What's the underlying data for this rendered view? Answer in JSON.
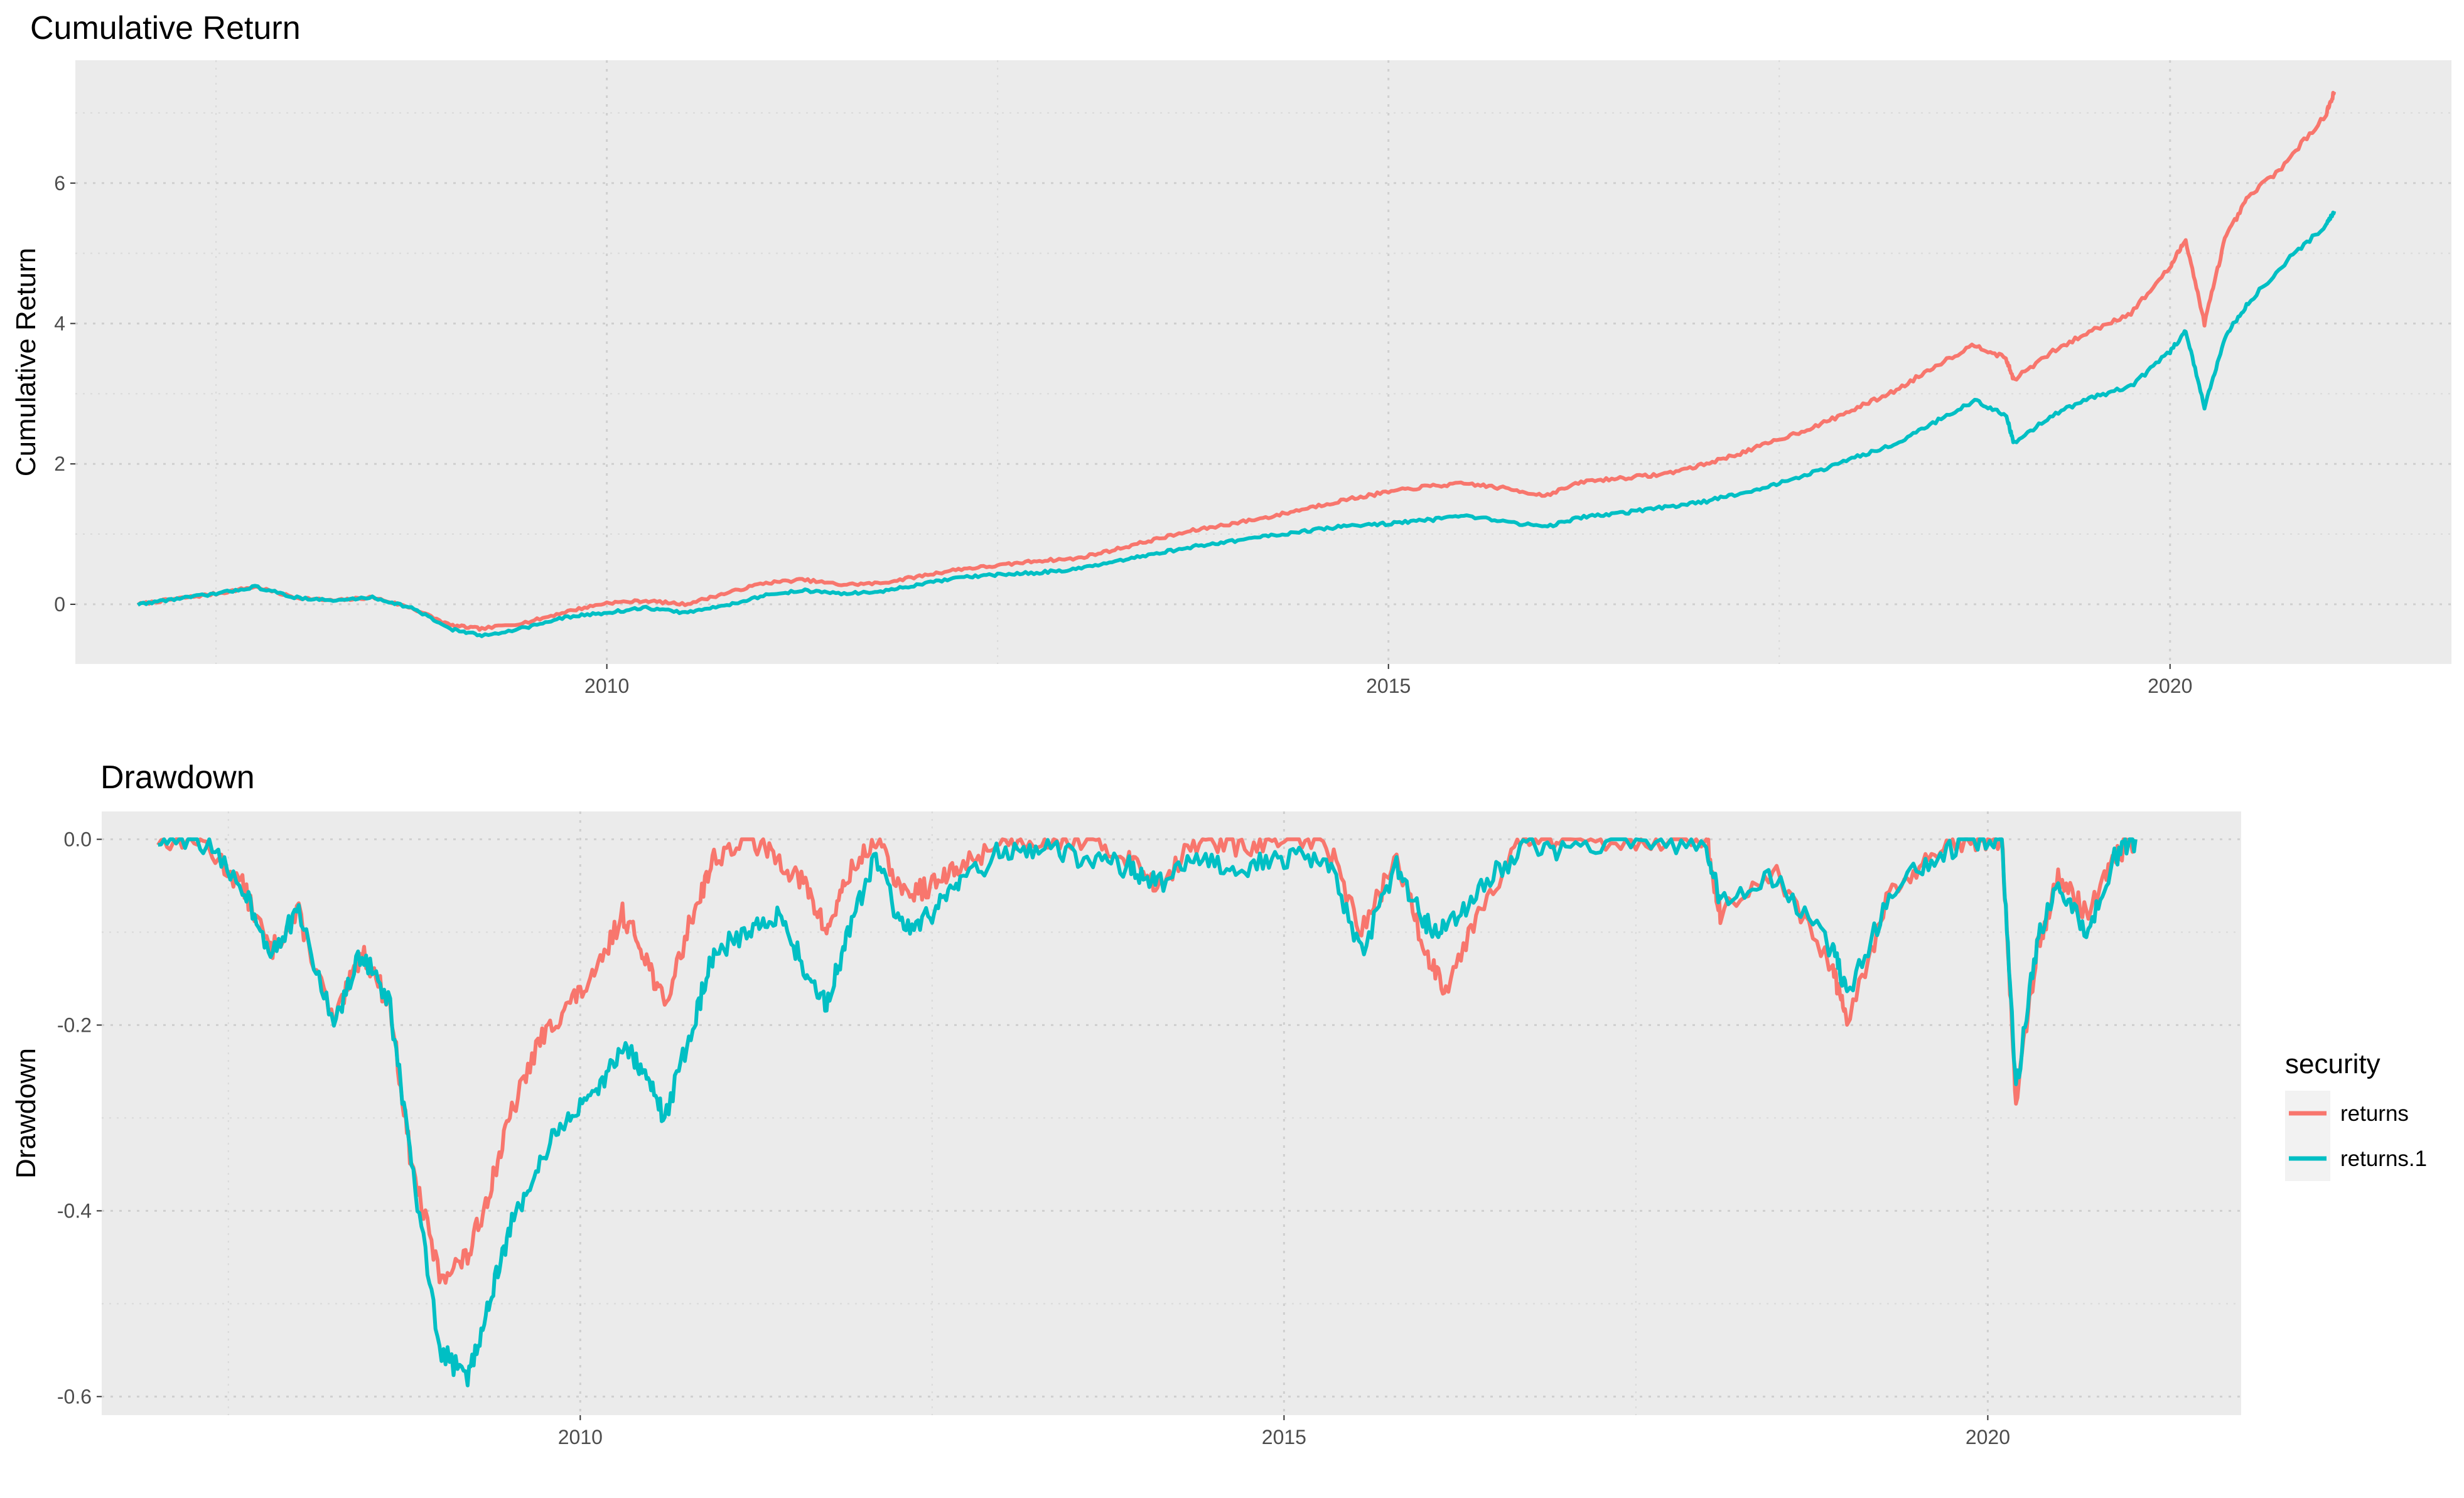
{
  "chart_data": [
    {
      "type": "line",
      "title": "Cumulative Return",
      "xlabel": "",
      "ylabel": "Cumulative Return",
      "x_ticks": [
        "2010",
        "2015",
        "2020"
      ],
      "y_ticks": [
        "0",
        "2",
        "4",
        "6"
      ],
      "xlim": [
        2006.6,
        2021.8
      ],
      "ylim": [
        -0.85,
        7.75
      ],
      "grid": true,
      "series": [
        {
          "name": "returns",
          "color": "#F8766D",
          "x": [
            2007.0,
            2007.25,
            2007.5,
            2007.75,
            2008.0,
            2008.25,
            2008.5,
            2008.75,
            2009.0,
            2009.2,
            2009.5,
            2009.75,
            2010.0,
            2010.25,
            2010.5,
            2010.75,
            2011.0,
            2011.25,
            2011.5,
            2011.75,
            2012.0,
            2012.25,
            2012.5,
            2012.75,
            2013.0,
            2013.25,
            2013.5,
            2013.75,
            2014.0,
            2014.25,
            2014.5,
            2014.75,
            2015.0,
            2015.25,
            2015.5,
            2015.75,
            2016.0,
            2016.25,
            2016.5,
            2016.75,
            2017.0,
            2017.25,
            2017.5,
            2017.75,
            2018.0,
            2018.25,
            2018.5,
            2018.75,
            2018.95,
            2019.0,
            2019.25,
            2019.5,
            2019.75,
            2020.0,
            2020.1,
            2020.22,
            2020.35,
            2020.5,
            2020.75,
            2021.0,
            2021.05
          ],
          "y": [
            0.0,
            0.08,
            0.15,
            0.25,
            0.1,
            0.05,
            0.1,
            -0.05,
            -0.3,
            -0.35,
            -0.25,
            -0.1,
            0.02,
            0.05,
            0.0,
            0.15,
            0.3,
            0.35,
            0.28,
            0.3,
            0.4,
            0.5,
            0.55,
            0.62,
            0.65,
            0.78,
            0.92,
            1.05,
            1.15,
            1.25,
            1.38,
            1.5,
            1.6,
            1.68,
            1.72,
            1.65,
            1.55,
            1.75,
            1.8,
            1.85,
            1.98,
            2.15,
            2.35,
            2.55,
            2.8,
            3.05,
            3.4,
            3.7,
            3.5,
            3.2,
            3.6,
            3.9,
            4.15,
            4.8,
            5.2,
            4.0,
            5.2,
            5.8,
            6.3,
            7.0,
            7.3
          ]
        },
        {
          "name": "returns.1",
          "color": "#00BFC4",
          "x": [
            2007.0,
            2007.25,
            2007.5,
            2007.75,
            2008.0,
            2008.25,
            2008.5,
            2008.75,
            2009.0,
            2009.2,
            2009.5,
            2009.75,
            2010.0,
            2010.25,
            2010.5,
            2010.75,
            2011.0,
            2011.25,
            2011.5,
            2011.75,
            2012.0,
            2012.25,
            2012.5,
            2012.75,
            2013.0,
            2013.25,
            2013.5,
            2013.75,
            2014.0,
            2014.25,
            2014.5,
            2014.75,
            2015.0,
            2015.25,
            2015.5,
            2015.75,
            2016.0,
            2016.25,
            2016.5,
            2016.75,
            2017.0,
            2017.25,
            2017.5,
            2017.75,
            2018.0,
            2018.25,
            2018.5,
            2018.75,
            2018.95,
            2019.0,
            2019.25,
            2019.5,
            2019.75,
            2020.0,
            2020.1,
            2020.22,
            2020.35,
            2020.5,
            2020.75,
            2021.0,
            2021.05
          ],
          "y": [
            0.0,
            0.08,
            0.15,
            0.25,
            0.1,
            0.05,
            0.1,
            -0.05,
            -0.35,
            -0.45,
            -0.32,
            -0.18,
            -0.12,
            -0.05,
            -0.12,
            -0.02,
            0.12,
            0.2,
            0.15,
            0.18,
            0.28,
            0.38,
            0.42,
            0.45,
            0.5,
            0.6,
            0.72,
            0.82,
            0.9,
            0.98,
            1.05,
            1.12,
            1.15,
            1.2,
            1.25,
            1.18,
            1.1,
            1.25,
            1.3,
            1.38,
            1.45,
            1.58,
            1.72,
            1.9,
            2.1,
            2.3,
            2.6,
            2.9,
            2.7,
            2.3,
            2.7,
            2.95,
            3.1,
            3.6,
            3.9,
            2.8,
            3.8,
            4.3,
            4.9,
            5.4,
            5.6
          ]
        }
      ]
    },
    {
      "type": "line",
      "title": "Drawdown",
      "xlabel": "",
      "ylabel": "Drawdown",
      "x_ticks": [
        "2010",
        "2015",
        "2020"
      ],
      "y_ticks": [
        "-0.6",
        "-0.4",
        "-0.2",
        "0.0"
      ],
      "xlim": [
        2006.6,
        2021.8
      ],
      "ylim": [
        -0.62,
        0.03
      ],
      "grid": true,
      "legend": {
        "title": "security",
        "position": "right",
        "entries": [
          "returns",
          "returns.1"
        ]
      },
      "series": [
        {
          "name": "returns",
          "color": "#F8766D",
          "x": [
            2007.0,
            2007.3,
            2007.6,
            2007.8,
            2008.0,
            2008.25,
            2008.45,
            2008.65,
            2008.8,
            2009.0,
            2009.2,
            2009.35,
            2009.5,
            2009.7,
            2009.9,
            2010.1,
            2010.3,
            2010.45,
            2010.6,
            2010.8,
            2010.95,
            2011.2,
            2011.4,
            2011.6,
            2011.75,
            2011.9,
            2012.1,
            2012.3,
            2012.5,
            2012.7,
            2013.0,
            2013.3,
            2013.6,
            2013.9,
            2014.1,
            2014.4,
            2014.7,
            2015.0,
            2015.3,
            2015.55,
            2015.8,
            2016.0,
            2016.15,
            2016.4,
            2016.7,
            2017.0,
            2017.5,
            2018.0,
            2018.1,
            2018.5,
            2018.9,
            2019.0,
            2019.3,
            2019.6,
            2019.9,
            2020.1,
            2020.2,
            2020.35,
            2020.5,
            2020.7,
            2020.9,
            2021.05
          ],
          "y": [
            0.0,
            0.0,
            -0.05,
            -0.12,
            -0.08,
            -0.2,
            -0.12,
            -0.18,
            -0.35,
            -0.47,
            -0.45,
            -0.38,
            -0.3,
            -0.22,
            -0.18,
            -0.15,
            -0.08,
            -0.12,
            -0.18,
            -0.08,
            -0.02,
            0.0,
            -0.02,
            -0.05,
            -0.1,
            -0.04,
            0.0,
            -0.06,
            -0.05,
            -0.03,
            0.0,
            0.0,
            0.0,
            -0.02,
            -0.05,
            0.0,
            -0.01,
            0.0,
            0.0,
            -0.1,
            -0.02,
            -0.12,
            -0.16,
            -0.07,
            0.0,
            0.0,
            0.0,
            0.0,
            -0.08,
            -0.04,
            -0.14,
            -0.2,
            -0.06,
            -0.02,
            0.0,
            0.0,
            -0.28,
            -0.12,
            -0.04,
            -0.08,
            -0.02,
            0.0
          ]
        },
        {
          "name": "returns.1",
          "color": "#00BFC4",
          "x": [
            2007.0,
            2007.3,
            2007.6,
            2007.8,
            2008.0,
            2008.25,
            2008.45,
            2008.65,
            2008.8,
            2009.0,
            2009.2,
            2009.35,
            2009.5,
            2009.7,
            2009.9,
            2010.1,
            2010.3,
            2010.45,
            2010.6,
            2010.8,
            2010.95,
            2011.2,
            2011.4,
            2011.6,
            2011.75,
            2011.9,
            2012.1,
            2012.3,
            2012.5,
            2012.7,
            2013.0,
            2013.3,
            2013.6,
            2013.9,
            2014.1,
            2014.4,
            2014.7,
            2015.0,
            2015.3,
            2015.55,
            2015.8,
            2016.0,
            2016.15,
            2016.4,
            2016.7,
            2017.0,
            2017.5,
            2018.0,
            2018.1,
            2018.5,
            2018.9,
            2019.0,
            2019.3,
            2019.6,
            2019.9,
            2020.1,
            2020.2,
            2020.35,
            2020.5,
            2020.7,
            2020.9,
            2021.05
          ],
          "y": [
            0.0,
            0.0,
            -0.05,
            -0.12,
            -0.08,
            -0.2,
            -0.12,
            -0.18,
            -0.35,
            -0.55,
            -0.58,
            -0.5,
            -0.42,
            -0.35,
            -0.3,
            -0.28,
            -0.22,
            -0.25,
            -0.3,
            -0.2,
            -0.12,
            -0.1,
            -0.08,
            -0.14,
            -0.18,
            -0.1,
            -0.02,
            -0.1,
            -0.08,
            -0.05,
            -0.01,
            -0.01,
            -0.02,
            -0.03,
            -0.05,
            -0.02,
            -0.03,
            -0.02,
            -0.02,
            -0.12,
            -0.03,
            -0.09,
            -0.1,
            -0.05,
            -0.01,
            -0.01,
            0.0,
            -0.01,
            -0.07,
            -0.04,
            -0.12,
            -0.17,
            -0.06,
            -0.02,
            0.0,
            0.0,
            -0.27,
            -0.11,
            -0.05,
            -0.1,
            -0.02,
            0.0
          ]
        }
      ]
    }
  ]
}
